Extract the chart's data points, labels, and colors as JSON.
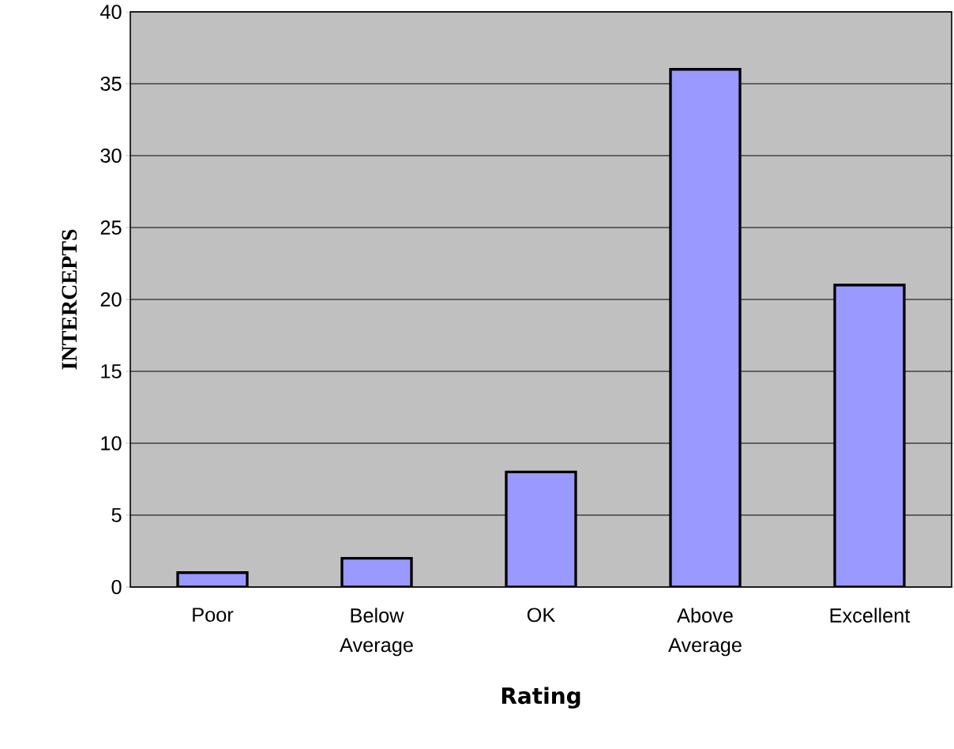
{
  "chart_data": {
    "type": "bar",
    "xlabel": "Rating",
    "ylabel": "INTERCEPTS",
    "categories": [
      "Poor",
      "Below Average",
      "OK",
      "Above Average",
      "Excellent"
    ],
    "values": [
      1,
      2,
      8,
      36,
      21
    ],
    "color": "#9999ff",
    "ylim": [
      0,
      40
    ],
    "yticks": [
      0,
      5,
      10,
      15,
      20,
      25,
      30,
      35,
      40
    ],
    "grid": "y"
  }
}
